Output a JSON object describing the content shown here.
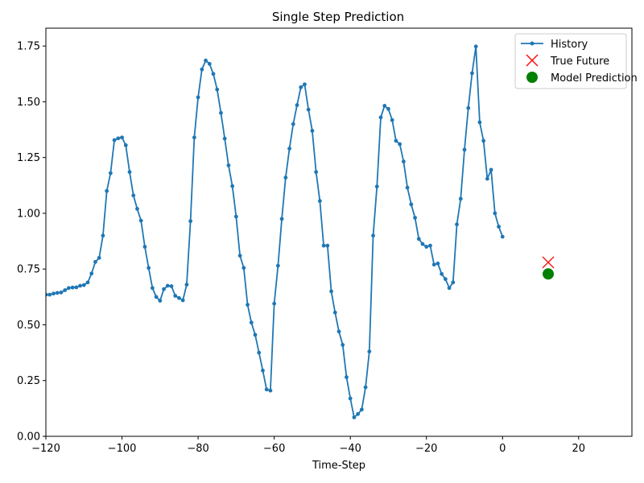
{
  "chart_data": {
    "type": "line",
    "title": "Single Step Prediction",
    "xlabel": "Time-Step",
    "ylabel": "",
    "xlim": [
      -120,
      34
    ],
    "ylim": [
      0.0,
      1.83
    ],
    "x_ticks": [
      -120,
      -100,
      -80,
      -60,
      -40,
      -20,
      0,
      20
    ],
    "x_tick_labels": [
      "−120",
      "−100",
      "−80",
      "−60",
      "−40",
      "−20",
      "0",
      "20"
    ],
    "y_ticks": [
      0.0,
      0.25,
      0.5,
      0.75,
      1.0,
      1.25,
      1.5,
      1.75
    ],
    "y_tick_labels": [
      "0.00",
      "0.25",
      "0.50",
      "0.75",
      "1.00",
      "1.25",
      "1.50",
      "1.75"
    ],
    "grid": false,
    "legend_position": "top-right",
    "series": [
      {
        "name": "History",
        "kind": "line-with-dots",
        "color": "#1f77b4",
        "x_start": -120,
        "y": [
          0.635,
          0.635,
          0.64,
          0.643,
          0.645,
          0.655,
          0.665,
          0.667,
          0.668,
          0.675,
          0.678,
          0.69,
          0.73,
          0.782,
          0.8,
          0.9,
          1.1,
          1.18,
          1.328,
          1.336,
          1.34,
          1.305,
          1.185,
          1.08,
          1.02,
          0.967,
          0.85,
          0.755,
          0.665,
          0.625,
          0.608,
          0.66,
          0.675,
          0.673,
          0.63,
          0.62,
          0.61,
          0.68,
          0.965,
          1.34,
          1.52,
          1.645,
          1.685,
          1.67,
          1.625,
          1.555,
          1.45,
          1.335,
          1.215,
          1.122,
          0.985,
          0.81,
          0.755,
          0.59,
          0.51,
          0.455,
          0.375,
          0.295,
          0.21,
          0.205,
          0.595,
          0.765,
          0.975,
          1.16,
          1.29,
          1.4,
          1.485,
          1.565,
          1.578,
          1.465,
          1.37,
          1.185,
          1.055,
          0.855,
          0.855,
          0.65,
          0.555,
          0.47,
          0.41,
          0.265,
          0.17,
          0.085,
          0.1,
          0.12,
          0.22,
          0.38,
          0.9,
          1.12,
          1.43,
          1.482,
          1.468,
          1.418,
          1.325,
          1.31,
          1.232,
          1.115,
          1.04,
          0.98,
          0.885,
          0.862,
          0.85,
          0.855,
          0.77,
          0.775,
          0.728,
          0.705,
          0.665,
          0.69,
          0.95,
          1.065,
          1.285,
          1.472,
          1.628,
          1.748,
          1.408,
          1.325,
          1.155,
          1.195,
          1.0,
          0.94,
          0.895
        ]
      },
      {
        "name": "True Future",
        "kind": "marker-x",
        "color": "#ff0000",
        "x": [
          12
        ],
        "y": [
          0.78
        ]
      },
      {
        "name": "Model Prediction",
        "kind": "marker-circle",
        "color": "#008000",
        "x": [
          12
        ],
        "y": [
          0.728
        ]
      }
    ]
  }
}
